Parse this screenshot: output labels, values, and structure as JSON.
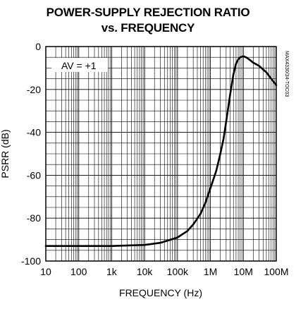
{
  "chart_data": {
    "type": "line",
    "title": "POWER-SUPPLY REJECTION RATIO",
    "subtitle": "vs. FREQUENCY",
    "xlabel": "FREQUENCY (Hz)",
    "ylabel": "PSRR (dB)",
    "x_scale": "log",
    "xlim": [
      10,
      100000000
    ],
    "ylim": [
      -100,
      0
    ],
    "grid": true,
    "x_tick_labels": [
      "10",
      "100",
      "1k",
      "10k",
      "100k",
      "1M",
      "10M",
      "100M"
    ],
    "y_tick_labels": [
      "0",
      "-20",
      "-40",
      "-60",
      "-80",
      "-100"
    ],
    "annotation": "AV = +1",
    "side_label": "MAX4330/34-TOC03",
    "series": [
      {
        "x": [
          10,
          30,
          100,
          1000,
          10000,
          30000,
          100000,
          200000,
          300000,
          500000,
          700000,
          1000000,
          1500000,
          2000000,
          2500000,
          3000000,
          4000000,
          5000000,
          6000000,
          7000000,
          8000000,
          10000000,
          12000000,
          15000000,
          20000000,
          30000000,
          50000000,
          70000000,
          100000000
        ],
        "y": [
          -93,
          -93,
          -93,
          -93,
          -92.5,
          -91.5,
          -89,
          -86,
          -83,
          -78,
          -73,
          -66,
          -58,
          -50,
          -43,
          -35,
          -22,
          -13,
          -8,
          -6,
          -5,
          -4.5,
          -5,
          -6,
          -7.5,
          -9,
          -12,
          -15,
          -18
        ]
      }
    ]
  }
}
